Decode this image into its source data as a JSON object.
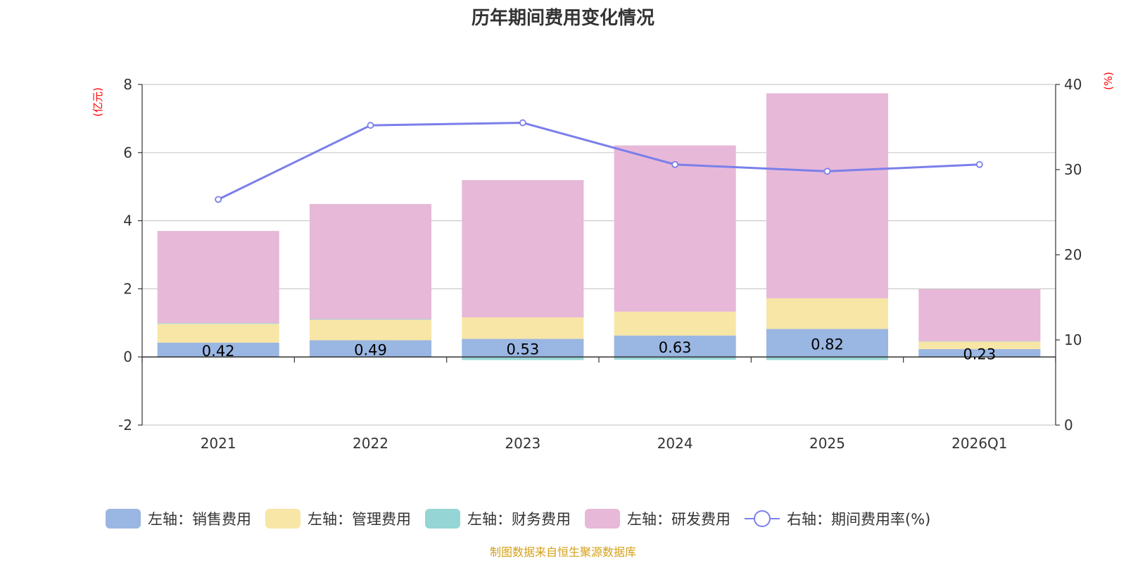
{
  "chart_data": {
    "type": "bar",
    "stacked": true,
    "title": "历年期间费用变化情况",
    "categories": [
      "2021",
      "2022",
      "2023",
      "2024",
      "2025",
      "2026Q1"
    ],
    "left_axis": {
      "unit": "(亿元)",
      "ylim": [
        -2,
        8
      ],
      "ticks": [
        -2,
        0,
        2,
        4,
        6,
        8
      ]
    },
    "right_axis": {
      "unit": "(%)",
      "ylim": [
        0,
        40
      ],
      "ticks": [
        0,
        10,
        20,
        30,
        40
      ]
    },
    "series": [
      {
        "name": "左轴：销售费用",
        "axis": "left",
        "color": "#9ab6e2",
        "values": [
          0.42,
          0.49,
          0.53,
          0.63,
          0.82,
          0.23
        ],
        "show_labels": true
      },
      {
        "name": "左轴：管理费用",
        "axis": "left",
        "color": "#f8e6a6",
        "values": [
          0.55,
          0.6,
          0.63,
          0.7,
          0.9,
          0.22
        ]
      },
      {
        "name": "左轴：财务费用",
        "axis": "left",
        "color": "#96d5d5",
        "values": [
          0.02,
          0.02,
          -0.09,
          -0.08,
          -0.09,
          0.01
        ]
      },
      {
        "name": "左轴：研发费用",
        "axis": "left",
        "color": "#e7b8d8",
        "values": [
          2.71,
          3.38,
          4.03,
          4.88,
          6.02,
          1.53
        ]
      }
    ],
    "line_series": {
      "name": "右轴：期间费用率(%)",
      "axis": "right",
      "color": "#7b7fea",
      "values": [
        26.5,
        35.2,
        35.5,
        30.6,
        29.8,
        30.6
      ]
    },
    "legend_position": "bottom",
    "source": "制图数据来自恒生聚源数据库"
  }
}
